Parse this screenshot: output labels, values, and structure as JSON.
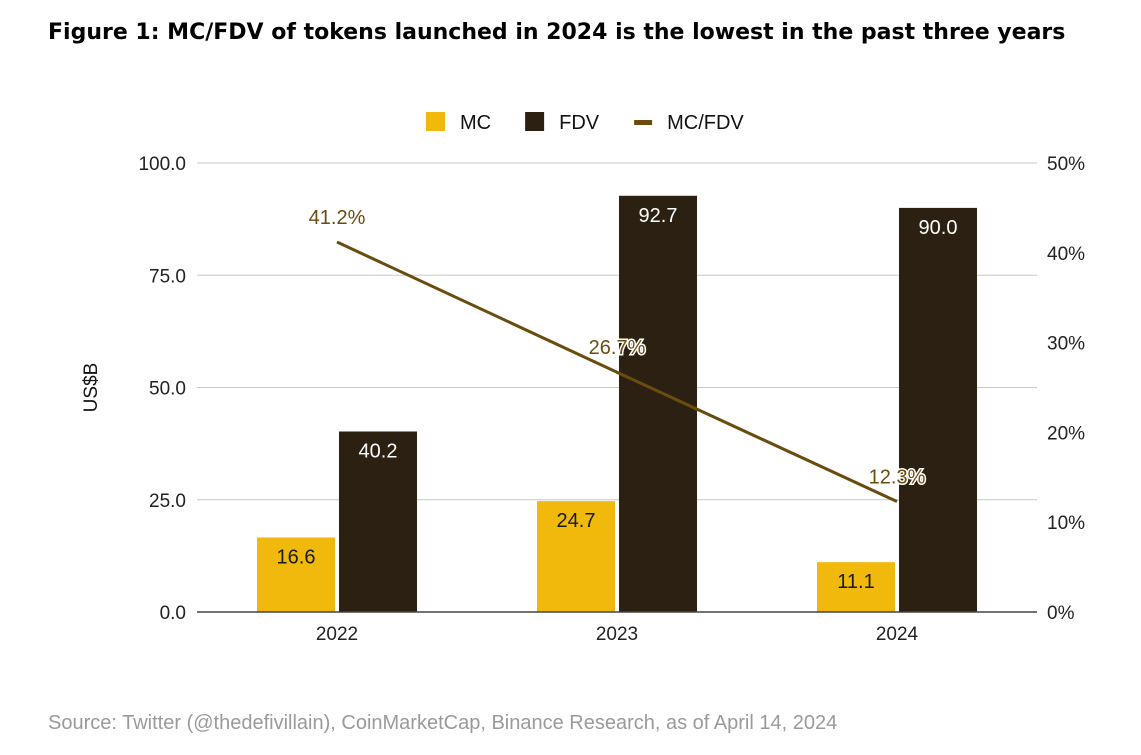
{
  "title": "Figure 1: MC/FDV of tokens launched in 2024 is the lowest in the past three years",
  "source": "Source: Twitter (@thedefivillain), CoinMarketCap, Binance Research, as of April 14, 2024",
  "chart_data": {
    "type": "bar",
    "categories": [
      "2022",
      "2023",
      "2024"
    ],
    "series": [
      {
        "name": "MC",
        "type": "bar",
        "axis": "left",
        "color": "#F0B90B",
        "label_color": "#1a1a1a",
        "values": [
          16.6,
          24.7,
          11.1
        ],
        "labels": [
          "16.6",
          "24.7",
          "11.1"
        ]
      },
      {
        "name": "FDV",
        "type": "bar",
        "axis": "left",
        "color": "#2B2012",
        "label_color": "#ffffff",
        "values": [
          40.2,
          92.7,
          90.0
        ],
        "labels": [
          "40.2",
          "92.7",
          "90.0"
        ]
      },
      {
        "name": "MC/FDV",
        "type": "line",
        "axis": "right",
        "color": "#6B4C0F",
        "values": [
          41.2,
          26.7,
          12.3
        ],
        "labels": [
          "41.2%",
          "26.7%",
          "12.3%"
        ]
      }
    ],
    "ylabel": "US$B",
    "ylim": [
      0,
      100
    ],
    "y_ticks": [
      "0.0",
      "25.0",
      "50.0",
      "75.0",
      "100.0"
    ],
    "y2lim": [
      0,
      50
    ],
    "y2_ticks": [
      "0%",
      "10%",
      "20%",
      "30%",
      "40%",
      "50%"
    ],
    "legend": "top-center",
    "grid": true
  }
}
